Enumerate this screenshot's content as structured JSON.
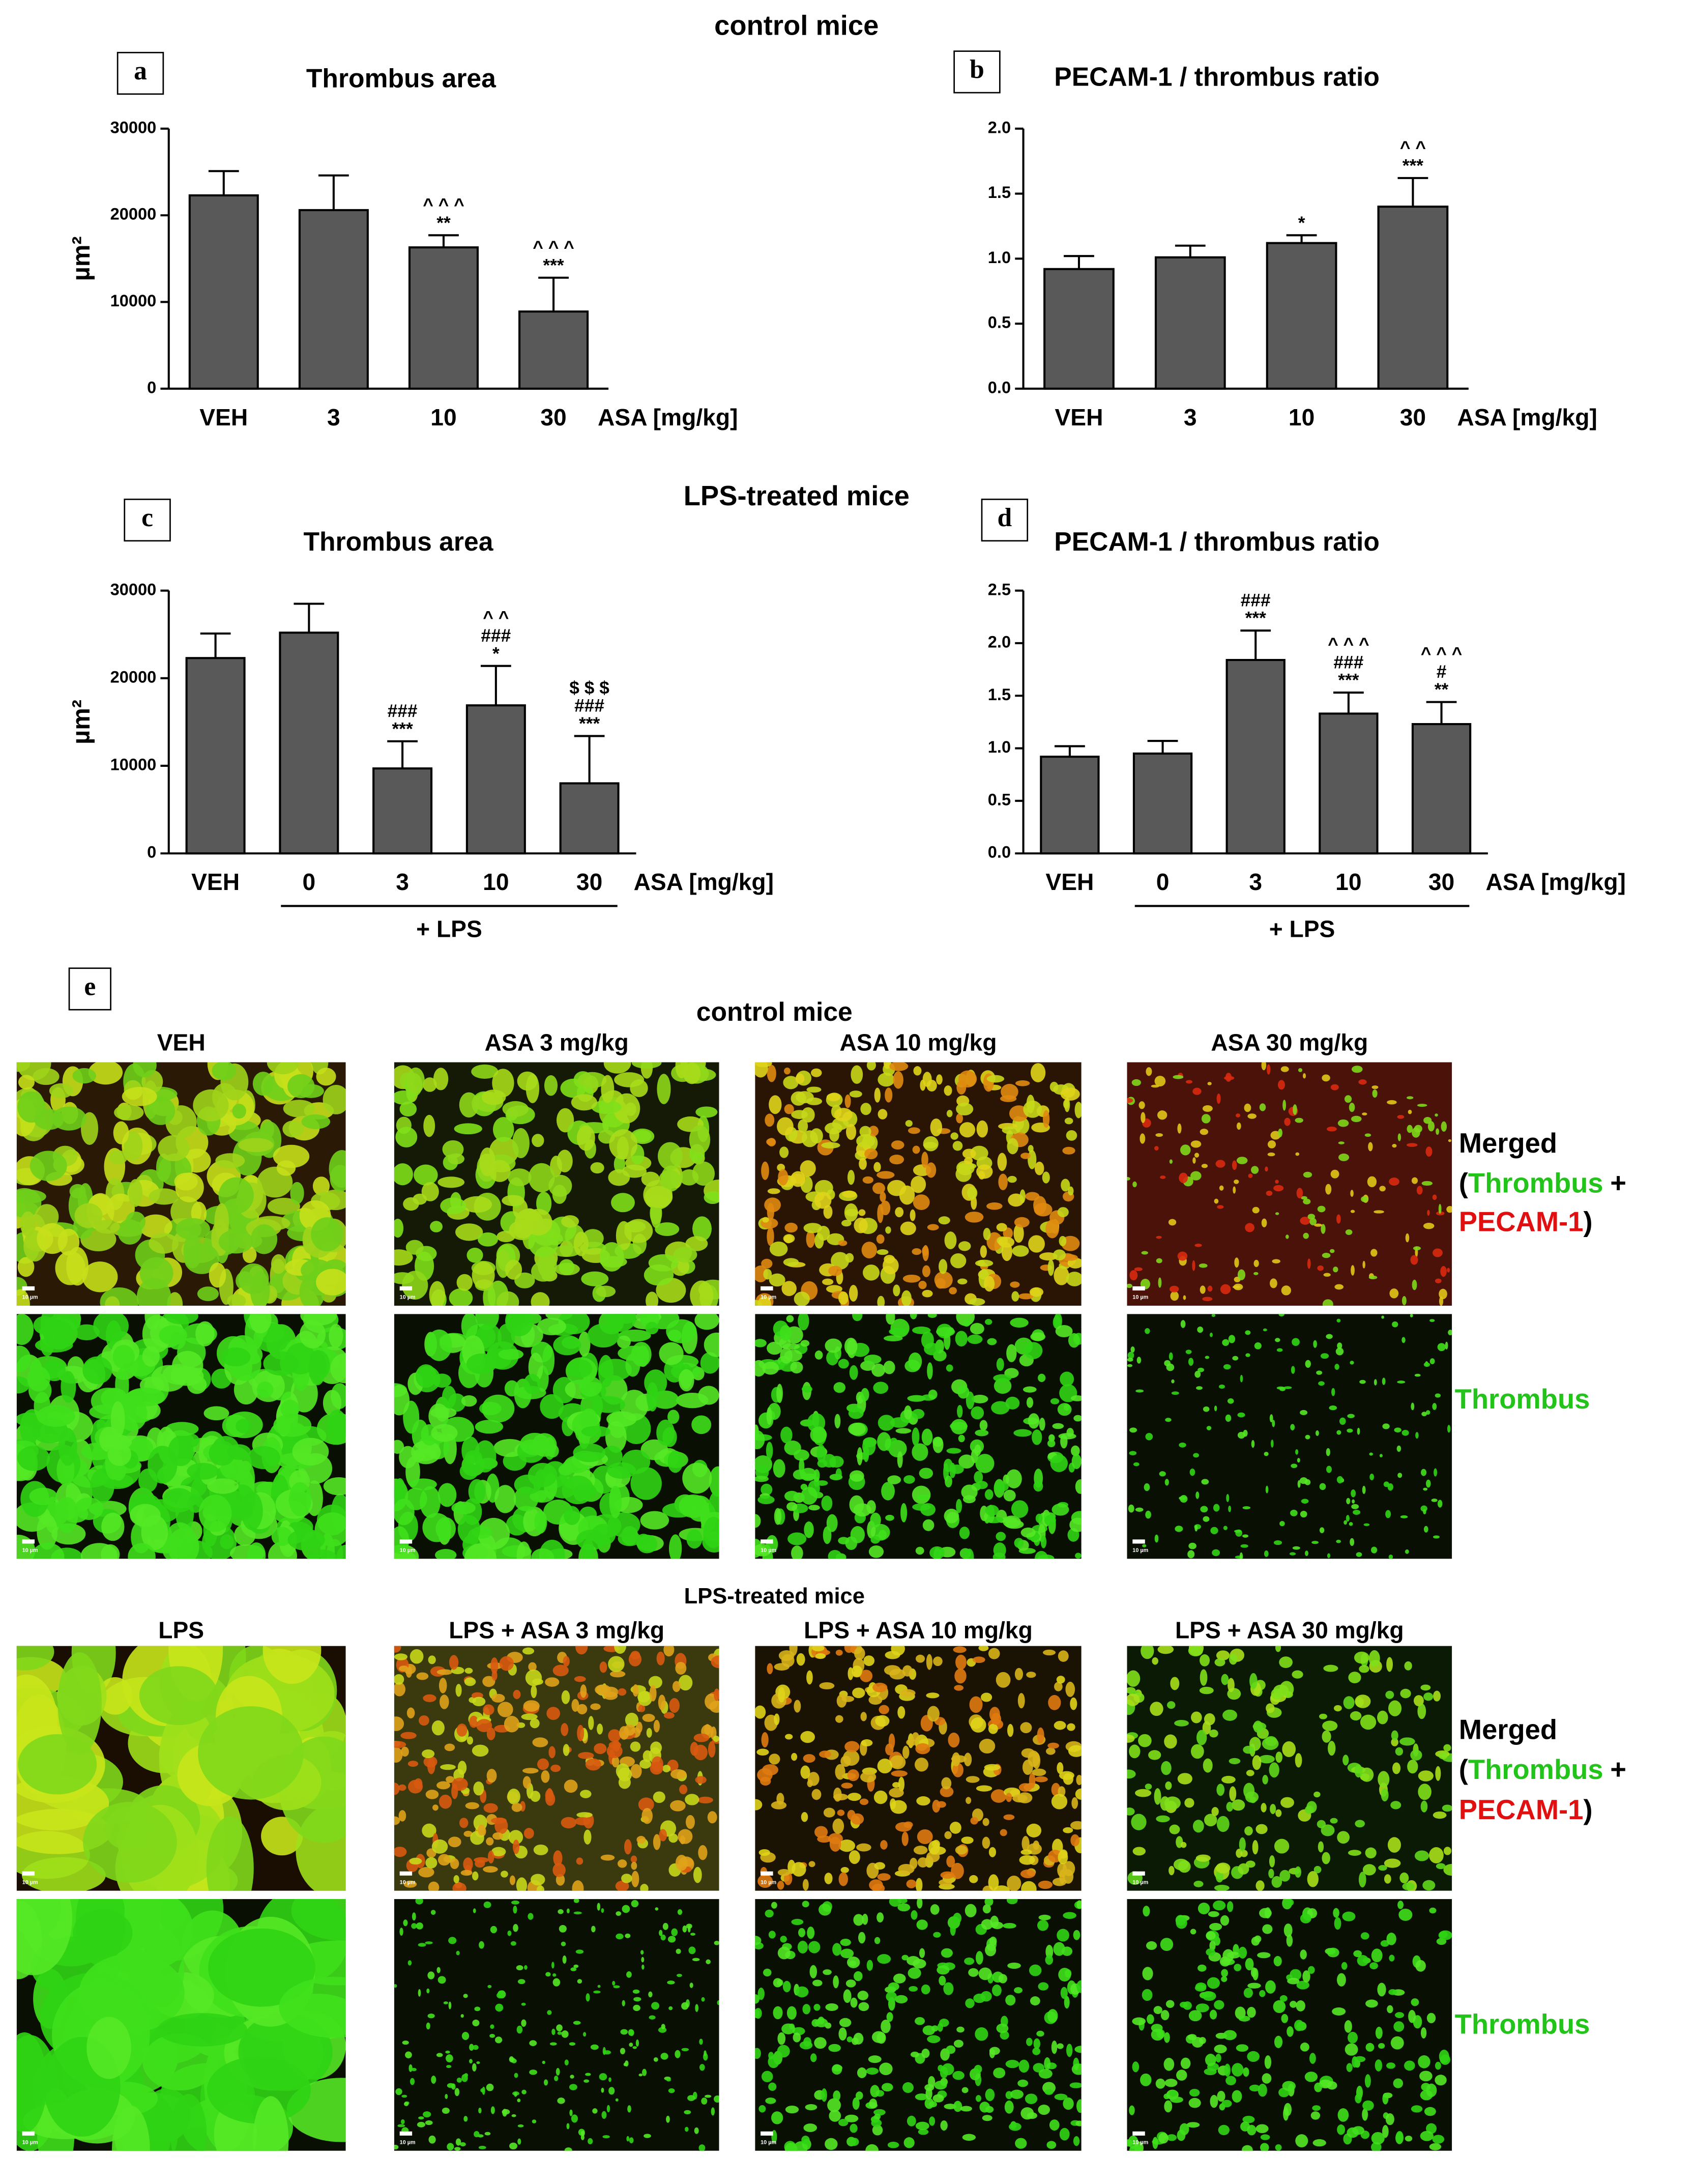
{
  "header": {
    "control_title": "control mice",
    "lps_title": "LPS-treated mice"
  },
  "chart_data": [
    {
      "type": "bar",
      "panel": "a",
      "title": "Thrombus area",
      "ylabel": "µm²",
      "xlabel": "ASA [mg/kg]",
      "color": "#595959",
      "categories": [
        "VEH",
        "3",
        "10",
        "30"
      ],
      "values": [
        22300,
        20600,
        16300,
        8900
      ],
      "errors": [
        2800,
        4000,
        1400,
        3900
      ],
      "annotations": [
        [],
        [],
        [
          "^ ^ ^",
          "**"
        ],
        [
          "^ ^ ^",
          "***"
        ]
      ],
      "ylim": [
        0,
        30000
      ],
      "yticks": [
        0,
        10000,
        20000,
        30000
      ]
    },
    {
      "type": "bar",
      "panel": "b",
      "title": "PECAM-1 / thrombus ratio",
      "xlabel": "ASA [mg/kg]",
      "color": "#595959",
      "categories": [
        "VEH",
        "3",
        "10",
        "30"
      ],
      "values": [
        0.92,
        1.01,
        1.12,
        1.4
      ],
      "errors": [
        0.1,
        0.09,
        0.06,
        0.22
      ],
      "annotations": [
        [],
        [],
        [
          "*"
        ],
        [
          "^ ^",
          "***"
        ]
      ],
      "ylim": [
        0,
        2
      ],
      "yticks": [
        {
          "value": 0,
          "label": "0.0"
        },
        0.5,
        {
          "value": 1,
          "label": "1.0"
        },
        1.5,
        {
          "value": 2,
          "label": "2.0"
        }
      ]
    },
    {
      "type": "bar",
      "panel": "c",
      "title": "Thrombus area",
      "ylabel": "µm²",
      "xlabel": "ASA [mg/kg]",
      "group_label": "+ LPS",
      "color": "#595959",
      "categories": [
        "VEH",
        "0",
        "3",
        "10",
        "30"
      ],
      "values": [
        22300,
        25200,
        9700,
        16900,
        8000
      ],
      "errors": [
        2800,
        3300,
        3100,
        4500,
        5400
      ],
      "annotations": [
        [],
        [],
        [
          "###",
          "***"
        ],
        [
          "^ ^",
          "###",
          "*"
        ],
        [
          "$ $ $",
          "###",
          "***"
        ]
      ],
      "ylim": [
        0,
        30000
      ],
      "yticks": [
        0,
        10000,
        20000,
        30000
      ]
    },
    {
      "type": "bar",
      "panel": "d",
      "title": "PECAM-1 / thrombus ratio",
      "xlabel": "ASA [mg/kg]",
      "group_label": "+ LPS",
      "color": "#595959",
      "categories": [
        "VEH",
        "0",
        "3",
        "10",
        "30"
      ],
      "values": [
        0.92,
        0.95,
        1.84,
        1.33,
        1.23
      ],
      "errors": [
        0.1,
        0.12,
        0.28,
        0.2,
        0.21
      ],
      "annotations": [
        [],
        [],
        [
          "###",
          "***"
        ],
        [
          "^ ^ ^",
          "###",
          "***"
        ],
        [
          "^ ^ ^",
          "#",
          "**"
        ]
      ],
      "ylim": [
        0,
        2.5
      ],
      "yticks": [
        {
          "value": 0,
          "label": "0.0"
        },
        0.5,
        {
          "value": 1,
          "label": "1.0"
        },
        1.5,
        {
          "value": 2,
          "label": "2.0"
        },
        2.5
      ]
    }
  ],
  "figure_e": {
    "panel": "e",
    "control": {
      "title": "control mice",
      "columns": [
        "VEH",
        "ASA 3 mg/kg",
        "ASA 10 mg/kg",
        "ASA 30 mg/kg"
      ]
    },
    "lps": {
      "title": "LPS-treated mice",
      "columns": [
        "LPS",
        "LPS + ASA 3 mg/kg",
        "LPS + ASA 10 mg/kg",
        "LPS + ASA 30 mg/kg"
      ]
    },
    "merged_label": {
      "merged": "Merged",
      "open": "(",
      "thrombus": "Thrombus",
      "plus": "+",
      "pecam": "PECAM-1",
      "close": ")"
    },
    "thrombus_label": "Thrombus",
    "scale_bar": "10 µm"
  }
}
